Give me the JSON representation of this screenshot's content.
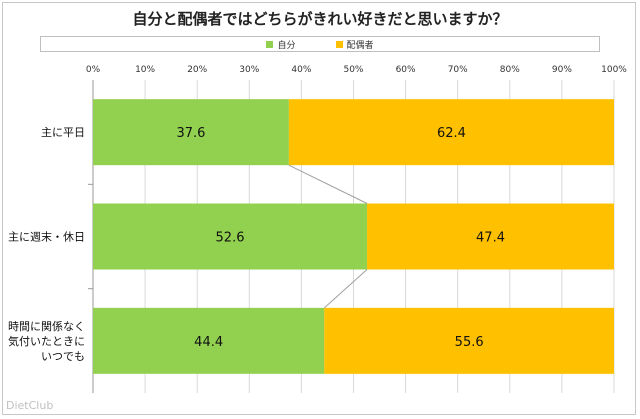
{
  "chart_data": {
    "type": "bar",
    "orientation": "horizontal",
    "stacked": true,
    "title": "自分と配偶者ではどちらがきれい好きだと思いますか？",
    "categories": [
      [
        "主に平日"
      ],
      [
        "主に週末・休日"
      ],
      [
        "時間に関係なく",
        "気付いたときに",
        "いつでも"
      ]
    ],
    "series": [
      {
        "name": "自分",
        "color": "#92d050",
        "values": [
          37.6,
          52.6,
          44.4
        ]
      },
      {
        "name": "配偶者",
        "color": "#ffc000",
        "values": [
          62.4,
          47.4,
          55.6
        ]
      }
    ],
    "xlim": [
      0,
      100
    ],
    "xticks": [
      "0%",
      "10%",
      "20%",
      "30%",
      "40%",
      "50%",
      "60%",
      "70%",
      "80%",
      "90%",
      "100%"
    ],
    "legend_position": "top",
    "grid": true
  },
  "watermark": "DietClub"
}
